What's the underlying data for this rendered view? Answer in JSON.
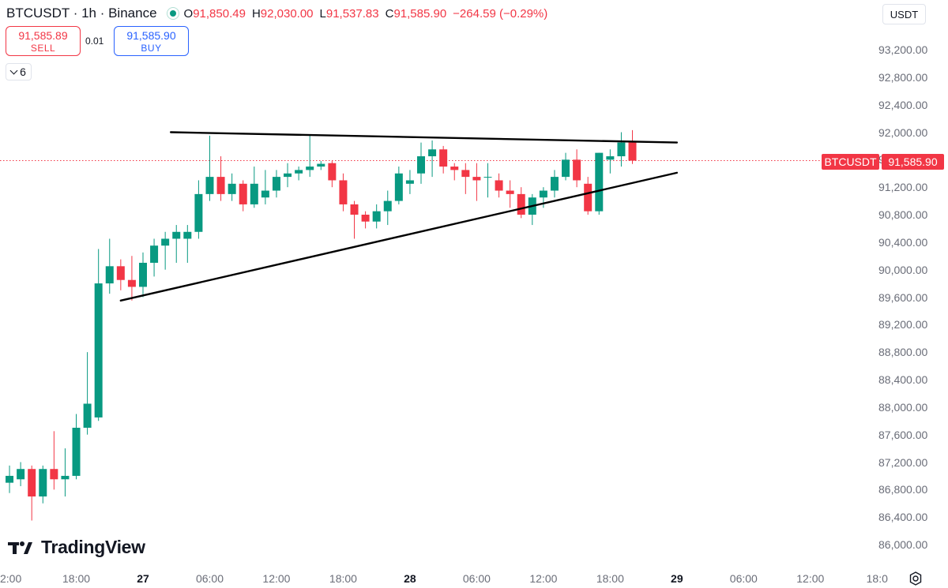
{
  "header": {
    "symbol_title": "BTCUSDT · 1h · Binance",
    "ohlc": [
      {
        "key": "O",
        "value": "91,850.49"
      },
      {
        "key": "H",
        "value": "92,030.00"
      },
      {
        "key": "L",
        "value": "91,537.83"
      },
      {
        "key": "C",
        "value": "91,585.90"
      }
    ],
    "change": "−264.59 (−0.29%)"
  },
  "trade": {
    "sell_price": "91,585.89",
    "sell_label": "SELL",
    "spread": "0.01",
    "buy_price": "91,585.90",
    "buy_label": "BUY"
  },
  "indicator_count": "6",
  "currency": "USDT",
  "price_tags": {
    "symbol": "BTCUSDT",
    "last_price": "91,585.90"
  },
  "branding": "TradingView",
  "colors": {
    "up": "#089981",
    "down": "#f23645",
    "trendline": "#000000",
    "axis_text": "#6a6d78"
  },
  "chart_data": {
    "type": "candlestick",
    "title": "BTCUSDT · 1h · Binance",
    "ylim": [
      85800,
      93600
    ],
    "y_ticks": [
      "86,000.00",
      "86,400.00",
      "86,800.00",
      "87,200.00",
      "87,600.00",
      "88,000.00",
      "88,400.00",
      "88,800.00",
      "89,200.00",
      "89,600.00",
      "90,000.00",
      "90,400.00",
      "90,800.00",
      "91,200.00",
      "91,600.00",
      "92,000.00",
      "92,400.00",
      "92,800.00",
      "93,200.00"
    ],
    "x_ticks": [
      "2:00",
      "18:00",
      "27",
      "06:00",
      "12:00",
      "18:00",
      "28",
      "06:00",
      "12:00",
      "18:00",
      "29",
      "06:00",
      "12:00",
      "18:0"
    ],
    "last_price": 91585.9,
    "candles": [
      {
        "t": "26 12:00",
        "o": 86900,
        "h": 87150,
        "l": 86750,
        "c": 87000
      },
      {
        "t": "26 13:00",
        "o": 86950,
        "h": 87200,
        "l": 86850,
        "c": 87100
      },
      {
        "t": "26 14:00",
        "o": 87100,
        "h": 87150,
        "l": 86350,
        "c": 86700
      },
      {
        "t": "26 15:00",
        "o": 86700,
        "h": 87150,
        "l": 86600,
        "c": 87100
      },
      {
        "t": "26 16:00",
        "o": 87100,
        "h": 87650,
        "l": 86800,
        "c": 86950
      },
      {
        "t": "26 17:00",
        "o": 86950,
        "h": 87400,
        "l": 86700,
        "c": 87000
      },
      {
        "t": "26 18:00",
        "o": 87000,
        "h": 87900,
        "l": 86950,
        "c": 87700
      },
      {
        "t": "26 19:00",
        "o": 87700,
        "h": 88800,
        "l": 87600,
        "c": 88050
      },
      {
        "t": "26 20:00",
        "o": 87850,
        "h": 90300,
        "l": 87800,
        "c": 89800
      },
      {
        "t": "26 21:00",
        "o": 89800,
        "h": 90450,
        "l": 89650,
        "c": 90050
      },
      {
        "t": "26 22:00",
        "o": 90050,
        "h": 90150,
        "l": 89700,
        "c": 89850
      },
      {
        "t": "26 23:00",
        "o": 89850,
        "h": 90200,
        "l": 89550,
        "c": 89750
      },
      {
        "t": "27 00:00",
        "o": 89750,
        "h": 90250,
        "l": 89600,
        "c": 90100
      },
      {
        "t": "27 01:00",
        "o": 90100,
        "h": 90450,
        "l": 89900,
        "c": 90350
      },
      {
        "t": "27 02:00",
        "o": 90350,
        "h": 90550,
        "l": 90000,
        "c": 90450
      },
      {
        "t": "27 03:00",
        "o": 90450,
        "h": 90650,
        "l": 90100,
        "c": 90550
      },
      {
        "t": "27 04:00",
        "o": 90450,
        "h": 90650,
        "l": 90100,
        "c": 90550
      },
      {
        "t": "27 05:00",
        "o": 90550,
        "h": 91300,
        "l": 90450,
        "c": 91100
      },
      {
        "t": "27 06:00",
        "o": 91100,
        "h": 91950,
        "l": 91000,
        "c": 91350
      },
      {
        "t": "27 07:00",
        "o": 91350,
        "h": 91650,
        "l": 91000,
        "c": 91100
      },
      {
        "t": "27 08:00",
        "o": 91100,
        "h": 91400,
        "l": 91000,
        "c": 91250
      },
      {
        "t": "27 09:00",
        "o": 91250,
        "h": 91300,
        "l": 90850,
        "c": 90950
      },
      {
        "t": "27 10:00",
        "o": 90950,
        "h": 91500,
        "l": 90900,
        "c": 91250
      },
      {
        "t": "27 11:00",
        "o": 91050,
        "h": 91450,
        "l": 90950,
        "c": 91150
      },
      {
        "t": "27 12:00",
        "o": 91150,
        "h": 91450,
        "l": 91050,
        "c": 91350
      },
      {
        "t": "27 13:00",
        "o": 91350,
        "h": 91550,
        "l": 91200,
        "c": 91400
      },
      {
        "t": "27 14:00",
        "o": 91400,
        "h": 91500,
        "l": 91300,
        "c": 91450
      },
      {
        "t": "27 15:00",
        "o": 91450,
        "h": 91950,
        "l": 91350,
        "c": 91500
      },
      {
        "t": "27 16:00",
        "o": 91500,
        "h": 91580,
        "l": 91450,
        "c": 91540
      },
      {
        "t": "27 17:00",
        "o": 91550,
        "h": 91580,
        "l": 91200,
        "c": 91300
      },
      {
        "t": "27 18:00",
        "o": 91300,
        "h": 91400,
        "l": 90850,
        "c": 90950
      },
      {
        "t": "27 19:00",
        "o": 90950,
        "h": 91000,
        "l": 90450,
        "c": 90800
      },
      {
        "t": "27 20:00",
        "o": 90800,
        "h": 90850,
        "l": 90600,
        "c": 90700
      },
      {
        "t": "27 21:00",
        "o": 90700,
        "h": 90950,
        "l": 90600,
        "c": 90850
      },
      {
        "t": "27 22:00",
        "o": 90850,
        "h": 91150,
        "l": 90650,
        "c": 91000
      },
      {
        "t": "27 23:00",
        "o": 91000,
        "h": 91500,
        "l": 90950,
        "c": 91400
      },
      {
        "t": "28 00:00",
        "o": 91250,
        "h": 91450,
        "l": 91100,
        "c": 91300
      },
      {
        "t": "28 01:00",
        "o": 91400,
        "h": 91850,
        "l": 91250,
        "c": 91650
      },
      {
        "t": "28 02:00",
        "o": 91650,
        "h": 91880,
        "l": 91350,
        "c": 91750
      },
      {
        "t": "28 03:00",
        "o": 91750,
        "h": 91800,
        "l": 91400,
        "c": 91500
      },
      {
        "t": "28 04:00",
        "o": 91500,
        "h": 91550,
        "l": 91300,
        "c": 91450
      },
      {
        "t": "28 05:00",
        "o": 91450,
        "h": 91550,
        "l": 91100,
        "c": 91350
      },
      {
        "t": "28 06:00",
        "o": 91350,
        "h": 91550,
        "l": 91000,
        "c": 91300
      },
      {
        "t": "28 07:00",
        "o": 91350,
        "h": 91550,
        "l": 91050,
        "c": 91350
      },
      {
        "t": "28 08:00",
        "o": 91300,
        "h": 91400,
        "l": 91050,
        "c": 91150
      },
      {
        "t": "28 09:00",
        "o": 91150,
        "h": 91300,
        "l": 90900,
        "c": 91100
      },
      {
        "t": "28 10:00",
        "o": 91100,
        "h": 91200,
        "l": 90750,
        "c": 90800
      },
      {
        "t": "28 11:00",
        "o": 90800,
        "h": 91100,
        "l": 90650,
        "c": 91050
      },
      {
        "t": "28 12:00",
        "o": 91050,
        "h": 91200,
        "l": 90900,
        "c": 91150
      },
      {
        "t": "28 13:00",
        "o": 91150,
        "h": 91450,
        "l": 91050,
        "c": 91350
      },
      {
        "t": "28 14:00",
        "o": 91350,
        "h": 91700,
        "l": 91300,
        "c": 91600
      },
      {
        "t": "28 15:00",
        "o": 91600,
        "h": 91750,
        "l": 91200,
        "c": 91300
      },
      {
        "t": "28 16:00",
        "o": 91250,
        "h": 91350,
        "l": 90800,
        "c": 90850
      },
      {
        "t": "28 17:00",
        "o": 90850,
        "h": 91700,
        "l": 90800,
        "c": 91700
      },
      {
        "t": "28 18:00",
        "o": 91600,
        "h": 91750,
        "l": 91400,
        "c": 91650
      },
      {
        "t": "28 19:00",
        "o": 91650,
        "h": 92000,
        "l": 91500,
        "c": 91850
      },
      {
        "t": "28 20:00",
        "o": 91850,
        "h": 92030,
        "l": 91538,
        "c": 91586
      }
    ],
    "trendlines": [
      {
        "name": "upper",
        "from": {
          "t": "27 02:30",
          "y": 92000
        },
        "to": {
          "t": "29 00:00",
          "y": 91850
        }
      },
      {
        "name": "lower",
        "from": {
          "t": "26 22:00",
          "y": 89550
        },
        "to": {
          "t": "29 00:00",
          "y": 91410
        }
      }
    ]
  }
}
